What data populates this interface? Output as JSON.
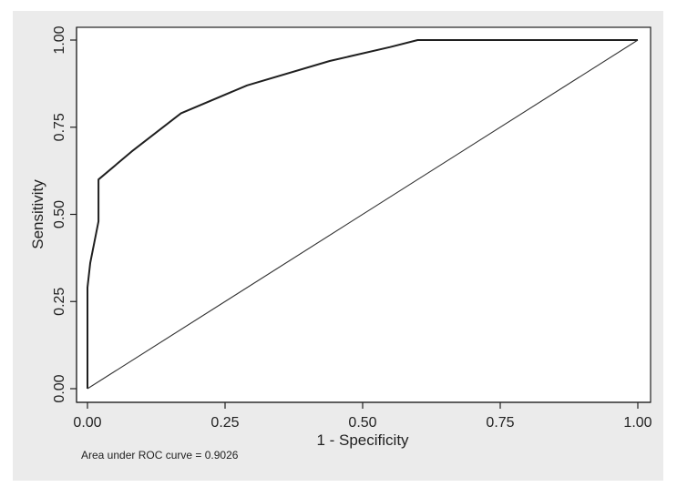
{
  "chart_data": {
    "type": "line",
    "xlabel": "1 - Specificity",
    "ylabel": "Sensitivity",
    "xlim": [
      0,
      1
    ],
    "ylim": [
      0,
      1
    ],
    "x_ticks": [
      "0.00",
      "0.25",
      "0.50",
      "0.75",
      "1.00"
    ],
    "y_ticks": [
      "0.00",
      "0.25",
      "0.50",
      "0.75",
      "1.00"
    ],
    "grid": false,
    "series": [
      {
        "x": [
          0,
          0,
          0.005,
          0.02,
          0.02,
          0.08,
          0.17,
          0.29,
          0.44,
          0.55,
          0.6,
          1.0
        ],
        "y": [
          0,
          0.29,
          0.36,
          0.48,
          0.6,
          0.68,
          0.79,
          0.87,
          0.94,
          0.98,
          1.0,
          1.0
        ]
      },
      {
        "x": [
          0,
          1
        ],
        "y": [
          0,
          1
        ]
      }
    ],
    "annotation": "Area under ROC curve = 0.9026"
  },
  "colors": {
    "frame_background": "#ebebeb",
    "plot_background": "#ffffff",
    "roc_curve": "#1f1f1f",
    "reference_line": "#333333",
    "text": "#222222"
  }
}
